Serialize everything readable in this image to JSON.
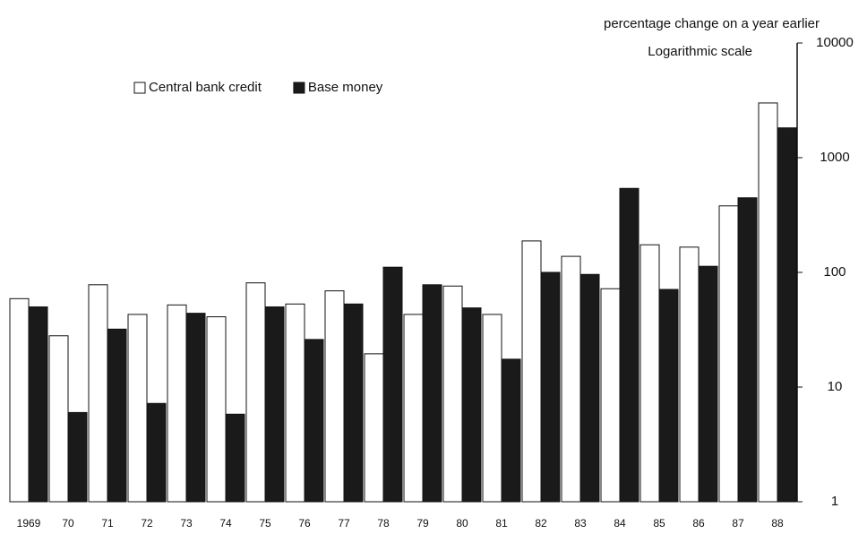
{
  "chart_data": {
    "type": "bar",
    "title": "percentage change on a year earlier",
    "subtitle": "Logarithmic scale",
    "categories": [
      "1969",
      "70",
      "71",
      "72",
      "73",
      "74",
      "75",
      "76",
      "77",
      "78",
      "79",
      "80",
      "81",
      "82",
      "83",
      "84",
      "85",
      "86",
      "87",
      "88"
    ],
    "series": [
      {
        "name": "Central bank credit",
        "color": "#ffffff",
        "values": [
          59,
          28,
          78,
          43,
          52,
          41,
          81,
          53,
          69,
          19.5,
          43,
          76,
          43,
          188,
          138,
          72,
          174,
          166,
          380,
          3000
        ]
      },
      {
        "name": "Base money",
        "color": "#1a1a1a",
        "values": [
          50,
          6,
          32,
          7.2,
          44,
          5.8,
          50,
          26,
          53,
          111,
          78,
          49,
          17.5,
          100,
          96,
          540,
          71,
          113,
          447,
          1820
        ]
      }
    ],
    "y_scale": "log",
    "ylim": [
      1,
      10000
    ],
    "yticks": [
      1,
      10,
      100,
      1000,
      10000
    ],
    "legend": "top-left"
  }
}
